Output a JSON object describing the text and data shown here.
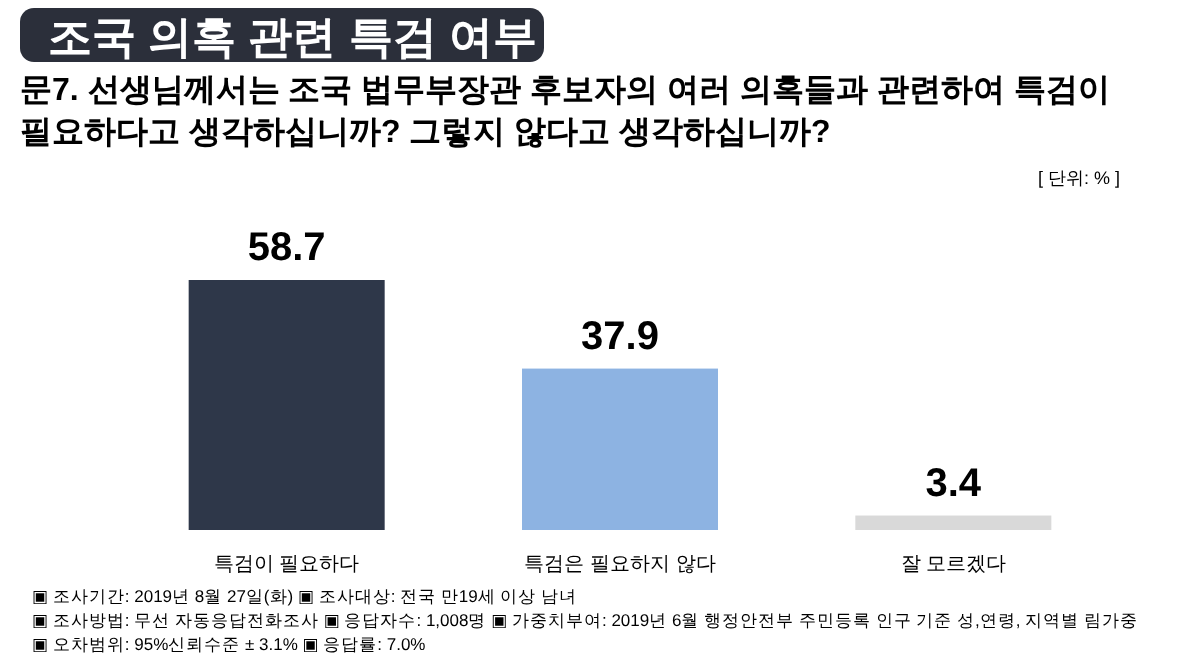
{
  "chart_data": {
    "type": "bar",
    "title": "조국 의혹 관련 특검 여부",
    "subtitle": "문7. 선생님께서는 조국 법무부장관 후보자의 여러 의혹들과 관련하여 특검이 필요하다고 생각하십니까? 그렇지 않다고 생각하십니까?",
    "categories": [
      "특검이 필요하다",
      "특검은 필요하지 않다",
      "잘 모르겠다"
    ],
    "values": [
      58.7,
      37.9,
      3.4
    ],
    "colors": [
      "#2e3749",
      "#8db3e2",
      "#d9d9d9"
    ],
    "data_labels": true,
    "annotations": [
      "[ 단위: % ]",
      "▣ 조사기간: 2019년 8월 27일(화)  ▣ 조사대상: 전국 만19세 이상 남녀",
      "▣ 조사방법: 무선 자동응답전화조사  ▣ 응답자수: 1,008명 ▣ 가중치부여: 2019년 6월 행정안전부 주민등록 인구 기준 성,연령, 지역별 림가중",
      "▣ 오차범위: 95%신뢰수준 ± 3.1%  ▣ 응답률: 7.0%"
    ]
  }
}
